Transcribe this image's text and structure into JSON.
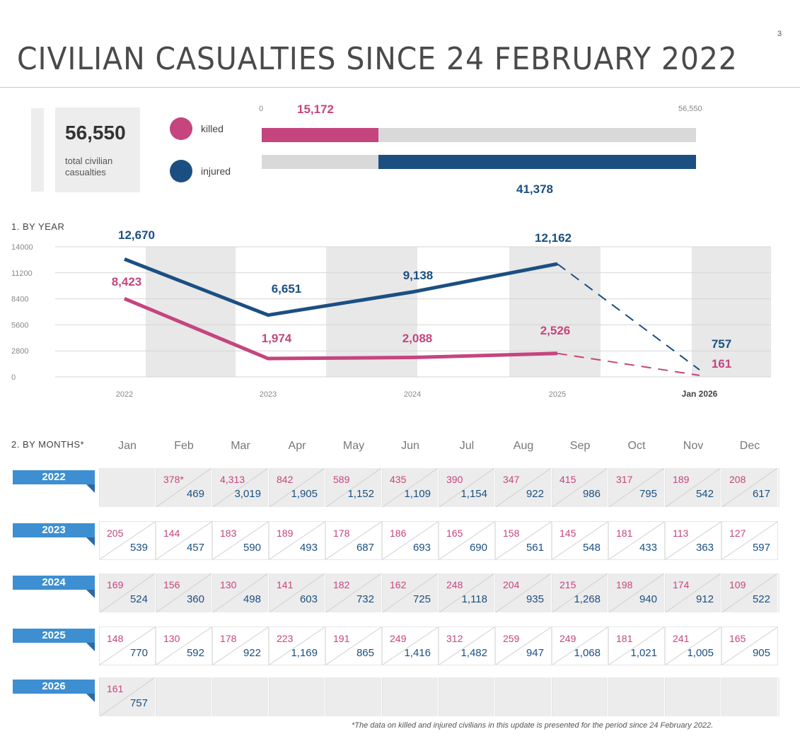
{
  "header": {
    "title": "CIVILIAN CASUALTIES SINCE 24 FEBRUARY 2022",
    "page_number": "3"
  },
  "summary": {
    "total_value": "56,550",
    "total_caption": "total civilian casualties",
    "legend": {
      "killed_label": "killed",
      "injured_label": "injured"
    },
    "bar": {
      "min_label": "0",
      "max_label": "56,550",
      "killed_value": "15,172",
      "injured_value": "41,378",
      "killed": 15172,
      "injured": 41378,
      "total": 56550
    }
  },
  "colors": {
    "killed": "#c5457e",
    "injured": "#1b4f82",
    "ribbon": "#3d8fd1"
  },
  "section_labels": {
    "by_year": "1. BY YEAR",
    "by_months": "2. BY MONTHS*"
  },
  "chart_data": {
    "type": "line",
    "title": "1. BY YEAR",
    "categories": [
      "2022",
      "2023",
      "2024",
      "2025",
      "Jan 2026"
    ],
    "yticks": [
      "14000",
      "11200",
      "8400",
      "5600",
      "2800",
      "0"
    ],
    "ylim": [
      0,
      14000
    ],
    "series": [
      {
        "name": "injured",
        "values": [
          12670,
          6651,
          9138,
          12162,
          757
        ],
        "labels": [
          "12,670",
          "6,651",
          "9,138",
          "12,162",
          "757"
        ]
      },
      {
        "name": "killed",
        "values": [
          8423,
          1974,
          2088,
          2526,
          161
        ],
        "labels": [
          "8,423",
          "1,974",
          "2,088",
          "2,526",
          "161"
        ]
      }
    ],
    "note": "Segment from 2025 to Jan 2026 drawn dashed"
  },
  "months": [
    "Jan",
    "Feb",
    "Mar",
    "Apr",
    "May",
    "Jun",
    "Jul",
    "Aug",
    "Sep",
    "Oct",
    "Nov",
    "Dec"
  ],
  "years": [
    {
      "year": "2022",
      "shade": "dark",
      "cells": [
        {
          "k": "",
          "i": ""
        },
        {
          "k": "378*",
          "i": "469"
        },
        {
          "k": "4,313",
          "i": "3,019"
        },
        {
          "k": "842",
          "i": "1,905"
        },
        {
          "k": "589",
          "i": "1,152"
        },
        {
          "k": "435",
          "i": "1,109"
        },
        {
          "k": "390",
          "i": "1,154"
        },
        {
          "k": "347",
          "i": "922"
        },
        {
          "k": "415",
          "i": "986"
        },
        {
          "k": "317",
          "i": "795"
        },
        {
          "k": "189",
          "i": "542"
        },
        {
          "k": "208",
          "i": "617"
        }
      ]
    },
    {
      "year": "2023",
      "shade": "light",
      "cells": [
        {
          "k": "205",
          "i": "539"
        },
        {
          "k": "144",
          "i": "457"
        },
        {
          "k": "183",
          "i": "590"
        },
        {
          "k": "189",
          "i": "493"
        },
        {
          "k": "178",
          "i": "687"
        },
        {
          "k": "186",
          "i": "693"
        },
        {
          "k": "165",
          "i": "690"
        },
        {
          "k": "158",
          "i": "561"
        },
        {
          "k": "145",
          "i": "548"
        },
        {
          "k": "181",
          "i": "433"
        },
        {
          "k": "113",
          "i": "363"
        },
        {
          "k": "127",
          "i": "597"
        }
      ]
    },
    {
      "year": "2024",
      "shade": "dark",
      "cells": [
        {
          "k": "169",
          "i": "524"
        },
        {
          "k": "156",
          "i": "360"
        },
        {
          "k": "130",
          "i": "498"
        },
        {
          "k": "141",
          "i": "603"
        },
        {
          "k": "182",
          "i": "732"
        },
        {
          "k": "162",
          "i": "725"
        },
        {
          "k": "248",
          "i": "1,118"
        },
        {
          "k": "204",
          "i": "935"
        },
        {
          "k": "215",
          "i": "1,268"
        },
        {
          "k": "198",
          "i": "940"
        },
        {
          "k": "174",
          "i": "912"
        },
        {
          "k": "109",
          "i": "522"
        }
      ]
    },
    {
      "year": "2025",
      "shade": "light",
      "cells": [
        {
          "k": "148",
          "i": "770"
        },
        {
          "k": "130",
          "i": "592"
        },
        {
          "k": "178",
          "i": "922"
        },
        {
          "k": "223",
          "i": "1,169"
        },
        {
          "k": "191",
          "i": "865"
        },
        {
          "k": "249",
          "i": "1,416"
        },
        {
          "k": "312",
          "i": "1,482"
        },
        {
          "k": "259",
          "i": "947"
        },
        {
          "k": "249",
          "i": "1,068"
        },
        {
          "k": "181",
          "i": "1,021"
        },
        {
          "k": "241",
          "i": "1,005"
        },
        {
          "k": "165",
          "i": "905"
        }
      ]
    },
    {
      "year": "2026",
      "shade": "dark",
      "cells": [
        {
          "k": "161",
          "i": "757"
        },
        {
          "k": "",
          "i": ""
        },
        {
          "k": "",
          "i": ""
        },
        {
          "k": "",
          "i": ""
        },
        {
          "k": "",
          "i": ""
        },
        {
          "k": "",
          "i": ""
        },
        {
          "k": "",
          "i": ""
        },
        {
          "k": "",
          "i": ""
        },
        {
          "k": "",
          "i": ""
        },
        {
          "k": "",
          "i": ""
        },
        {
          "k": "",
          "i": ""
        },
        {
          "k": "",
          "i": ""
        }
      ]
    }
  ],
  "footnote": "*The data on killed and injured civilians in this update is presented for the period since 24 February 2022."
}
